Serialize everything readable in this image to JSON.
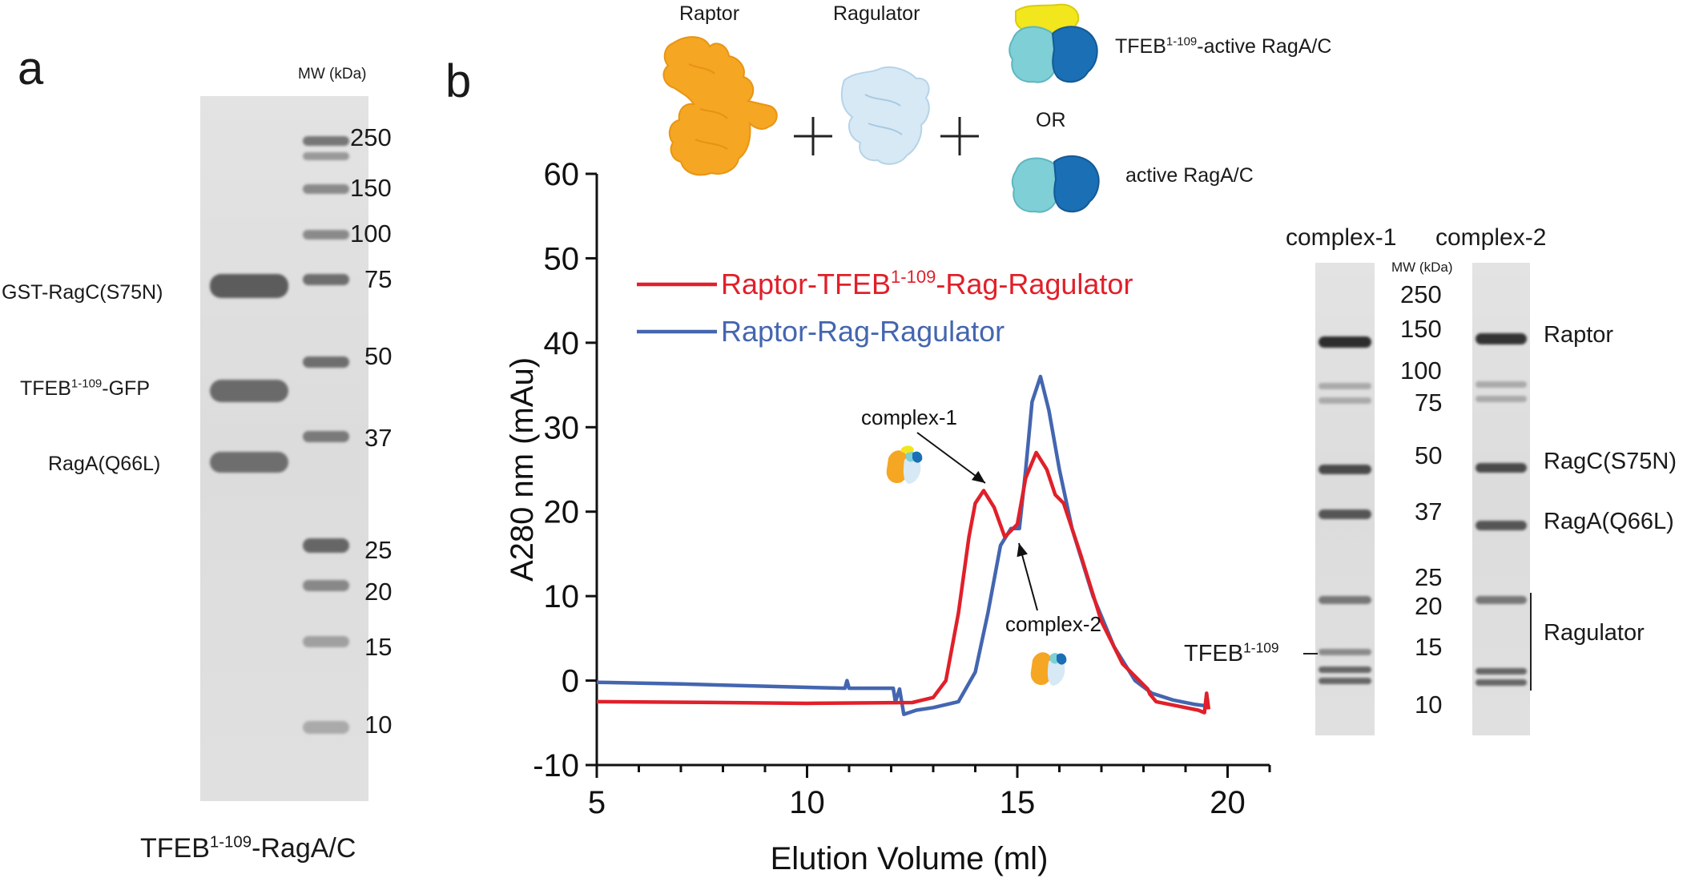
{
  "panel_a": {
    "letter": "a",
    "mw_header": "MW (kDa)",
    "mw_markers": [
      "250",
      "150",
      "100",
      "75",
      "50",
      "37",
      "25",
      "20",
      "15",
      "10"
    ],
    "band_labels": {
      "gst_ragc": "GST-RagC(S75N)",
      "tfeb_gfp_main": "TFEB",
      "tfeb_gfp_sup": "1-109",
      "tfeb_gfp_tail": "-GFP",
      "raga": "RagA(Q66L)"
    },
    "caption_main": "TFEB",
    "caption_sup": "1-109",
    "caption_tail": "-RagA/C"
  },
  "panel_b": {
    "letter": "b",
    "schematic": {
      "raptor": "Raptor",
      "ragulator": "Ragulator",
      "plus": "+",
      "tfeb_active_main": "TFEB",
      "tfeb_active_sup": "1-109",
      "tfeb_active_tail": "-active RagA/C",
      "or": "OR",
      "active_ragac": "active RagA/C"
    },
    "colors": {
      "raptor": "#f5a623",
      "ragulator": "#d6e9f5",
      "raga": "#7ecfd6",
      "ragc": "#1a6fb5",
      "tfeb": "#f2e61c",
      "red_trace": "#e0202a",
      "blue_trace": "#4466b0"
    },
    "gel": {
      "col1": "complex-1",
      "col2": "complex-2",
      "mw_header": "MW (kDa)",
      "mw_markers": [
        "250",
        "150",
        "100",
        "75",
        "50",
        "37",
        "25",
        "20",
        "15",
        "10"
      ],
      "right_labels": {
        "raptor": "Raptor",
        "ragc": "RagC(S75N)",
        "raga": "RagA(Q66L)",
        "ragulator": "Ragulator"
      },
      "tfeb_main": "TFEB",
      "tfeb_sup": "1-109"
    }
  },
  "chart_data": {
    "type": "line",
    "title": "",
    "xlabel": "Elution Volume (ml)",
    "ylabel": "A280 nm (mAu)",
    "xlim": [
      5,
      21
    ],
    "ylim": [
      -10,
      60
    ],
    "xticks": [
      "5",
      "10",
      "15",
      "20"
    ],
    "yticks": [
      "-10",
      "0",
      "10",
      "20",
      "30",
      "40",
      "50",
      "60"
    ],
    "legend": [
      {
        "main": "Raptor-TFEB",
        "sup": "1-109",
        "tail": "-Rag-Ragulator",
        "color": "#e0202a"
      },
      {
        "main": "Raptor-Rag-Ragulator",
        "sup": "",
        "tail": "",
        "color": "#4466b0"
      }
    ],
    "annotations": [
      "complex-1",
      "complex-2"
    ],
    "series": [
      {
        "name": "Raptor-TFEB1-109-Rag-Ragulator",
        "color": "#e0202a",
        "points": [
          [
            5,
            -2.5
          ],
          [
            8,
            -2.6
          ],
          [
            10,
            -2.7
          ],
          [
            12.5,
            -2.6
          ],
          [
            13,
            -2
          ],
          [
            13.3,
            0
          ],
          [
            13.6,
            8
          ],
          [
            13.85,
            17
          ],
          [
            14.0,
            21
          ],
          [
            14.2,
            22.5
          ],
          [
            14.45,
            20.5
          ],
          [
            14.7,
            17
          ],
          [
            15.0,
            18.5
          ],
          [
            15.2,
            24
          ],
          [
            15.45,
            27
          ],
          [
            15.7,
            25
          ],
          [
            15.9,
            22
          ],
          [
            16.1,
            21
          ],
          [
            16.5,
            15
          ],
          [
            17,
            7
          ],
          [
            17.5,
            2
          ],
          [
            18.0,
            -0.5
          ],
          [
            18.1,
            -1
          ],
          [
            18.15,
            -1.6
          ],
          [
            18.3,
            -2.5
          ],
          [
            18.8,
            -3
          ],
          [
            19.3,
            -3.5
          ],
          [
            19.45,
            -3.8
          ],
          [
            19.5,
            -1.5
          ],
          [
            19.55,
            -3.4
          ]
        ]
      },
      {
        "name": "Raptor-Rag-Ragulator",
        "color": "#4466b0",
        "points": [
          [
            5,
            -0.2
          ],
          [
            7,
            -0.4
          ],
          [
            10,
            -0.8
          ],
          [
            10.9,
            -0.9
          ],
          [
            10.95,
            0
          ],
          [
            11.0,
            -0.9
          ],
          [
            12.05,
            -0.9
          ],
          [
            12.1,
            -2.5
          ],
          [
            12.2,
            -1
          ],
          [
            12.3,
            -4
          ],
          [
            12.6,
            -3.5
          ],
          [
            13,
            -3.2
          ],
          [
            13.6,
            -2.5
          ],
          [
            14.0,
            1
          ],
          [
            14.3,
            8
          ],
          [
            14.6,
            16
          ],
          [
            14.85,
            18
          ],
          [
            15.05,
            18
          ],
          [
            15.2,
            25
          ],
          [
            15.35,
            33
          ],
          [
            15.55,
            36
          ],
          [
            15.75,
            32
          ],
          [
            16.0,
            25
          ],
          [
            16.3,
            18
          ],
          [
            16.8,
            10
          ],
          [
            17.3,
            4
          ],
          [
            17.8,
            0
          ],
          [
            18.2,
            -1.5
          ],
          [
            18.7,
            -2.3
          ],
          [
            19.2,
            -2.8
          ],
          [
            19.5,
            -3
          ]
        ]
      }
    ]
  }
}
